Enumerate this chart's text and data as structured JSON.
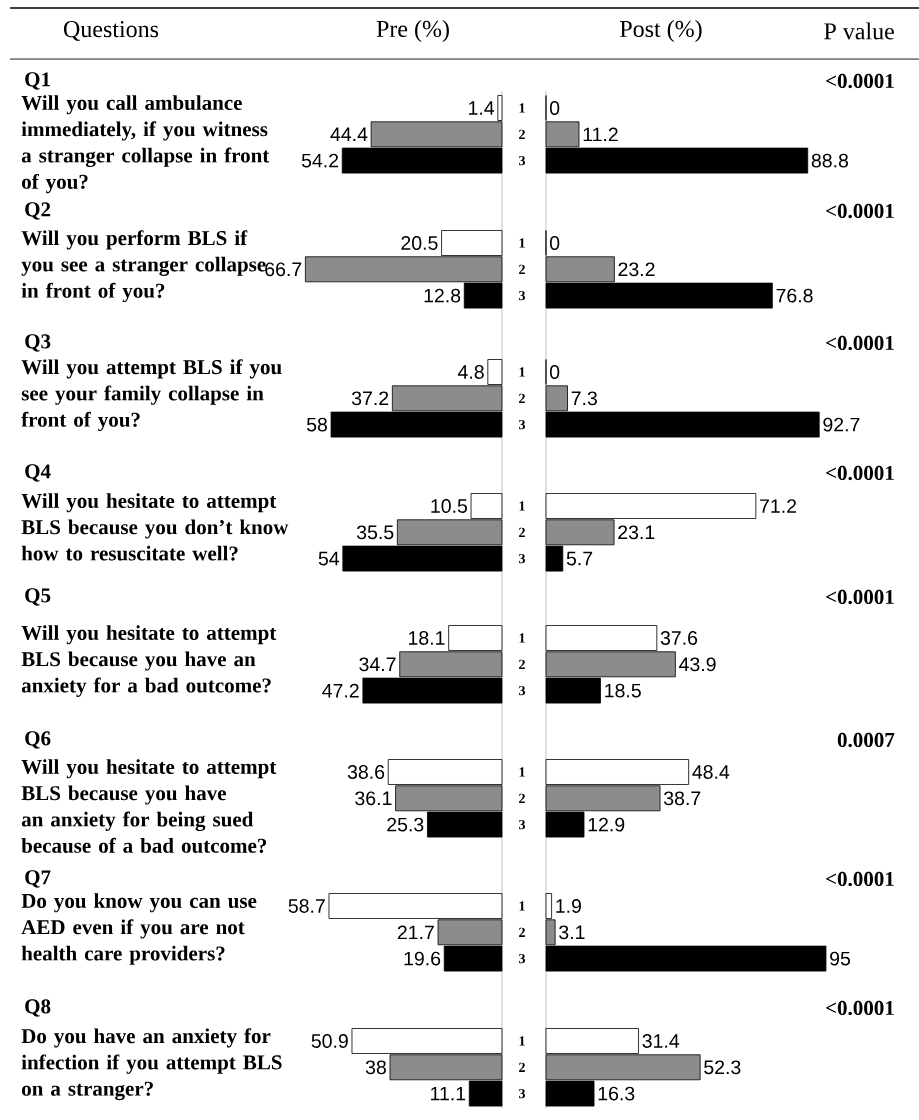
{
  "chart_data": [
    {
      "type": "other",
      "annotations": [
        "Questions",
        "Q1",
        "Will you call ambulance immediately, if you witness a stranger collapse in front of you?",
        "Q2",
        "Will you perform BLS if you see a stranger collapse in front of you?",
        "Q3",
        "Will you attempt BLS if you see your family collapse in front of you?",
        "Q4",
        "Will you hesitate to attempt BLS because you don’t know how to resuscitate well?",
        "Q5",
        "Will you hesitate to attempt BLS because you have an anxiety for a bad outcome?",
        "Q6",
        "Will you hesitate to attempt BLS because you have an anxiety for being sued because of a bad outcome?",
        "Q7",
        "Do you know you can use AED even if you are not health care providers?",
        "Q8",
        "Do you have an anxiety for infection if you attempt BLS on a stranger?"
      ]
    },
    {
      "type": "bar",
      "orientation": "horizontal",
      "title": "Pre (%)",
      "categories": [
        "1",
        "2",
        "3"
      ],
      "values": [
        1.4,
        44.4,
        54.2
      ],
      "colors": [
        "#ffffff",
        "#8c8c8c",
        "#000000"
      ],
      "data_labels": true,
      "tick_labels": "y"
    },
    {
      "type": "bar",
      "orientation": "horizontal",
      "categories": [
        "1",
        "2",
        "3"
      ],
      "values": [
        20.5,
        66.7,
        12.8
      ],
      "colors": [
        "#ffffff",
        "#8c8c8c",
        "#000000"
      ],
      "data_labels": true,
      "tick_labels": "y"
    },
    {
      "type": "bar",
      "orientation": "horizontal",
      "categories": [
        "1",
        "2",
        "3"
      ],
      "values": [
        4.8,
        37.2,
        58
      ],
      "colors": [
        "#ffffff",
        "#8c8c8c",
        "#000000"
      ],
      "data_labels": true,
      "tick_labels": "y"
    },
    {
      "type": "bar",
      "orientation": "horizontal",
      "categories": [
        "1",
        "2",
        "3"
      ],
      "values": [
        10.5,
        35.5,
        54
      ],
      "colors": [
        "#ffffff",
        "#8c8c8c",
        "#000000"
      ],
      "data_labels": true,
      "tick_labels": "y"
    },
    {
      "type": "bar",
      "orientation": "horizontal",
      "categories": [
        "1",
        "2",
        "3"
      ],
      "values": [
        18.1,
        34.7,
        47.2
      ],
      "colors": [
        "#ffffff",
        "#8c8c8c",
        "#000000"
      ],
      "data_labels": true,
      "tick_labels": "y"
    },
    {
      "type": "bar",
      "orientation": "horizontal",
      "categories": [
        "1",
        "2",
        "3"
      ],
      "values": [
        38.6,
        36.1,
        25.3
      ],
      "colors": [
        "#ffffff",
        "#8c8c8c",
        "#000000"
      ],
      "data_labels": true,
      "tick_labels": "y"
    },
    {
      "type": "bar",
      "orientation": "horizontal",
      "categories": [
        "1",
        "2",
        "3"
      ],
      "values": [
        58.7,
        21.7,
        19.6
      ],
      "colors": [
        "#ffffff",
        "#8c8c8c",
        "#000000"
      ],
      "data_labels": true,
      "tick_labels": "y"
    },
    {
      "type": "bar",
      "orientation": "horizontal",
      "categories": [
        "1",
        "2",
        "3"
      ],
      "values": [
        50.9,
        38,
        11.1
      ],
      "colors": [
        "#ffffff",
        "#8c8c8c",
        "#000000"
      ],
      "data_labels": true,
      "tick_labels": "y"
    },
    {
      "type": "bar",
      "orientation": "horizontal",
      "title": "Post (%)",
      "categories": [
        "1",
        "2",
        "3"
      ],
      "values": [
        0,
        11.2,
        88.8
      ],
      "colors": [
        "#ffffff",
        "#8c8c8c",
        "#000000"
      ],
      "data_labels": true,
      "tick_labels": false
    },
    {
      "type": "bar",
      "orientation": "horizontal",
      "categories": [
        "1",
        "2",
        "3"
      ],
      "values": [
        0,
        23.2,
        76.8
      ],
      "colors": [
        "#ffffff",
        "#8c8c8c",
        "#000000"
      ],
      "data_labels": true,
      "tick_labels": false
    },
    {
      "type": "bar",
      "orientation": "horizontal",
      "categories": [
        "1",
        "2",
        "3"
      ],
      "values": [
        0,
        7.3,
        92.7
      ],
      "colors": [
        "#ffffff",
        "#8c8c8c",
        "#000000"
      ],
      "data_labels": true,
      "tick_labels": false
    },
    {
      "type": "bar",
      "orientation": "horizontal",
      "categories": [
        "1",
        "2",
        "3"
      ],
      "values": [
        71.2,
        23.1,
        5.7
      ],
      "colors": [
        "#ffffff",
        "#8c8c8c",
        "#000000"
      ],
      "data_labels": true,
      "tick_labels": false
    },
    {
      "type": "bar",
      "orientation": "horizontal",
      "categories": [
        "1",
        "2",
        "3"
      ],
      "values": [
        37.6,
        43.9,
        18.5
      ],
      "colors": [
        "#ffffff",
        "#8c8c8c",
        "#000000"
      ],
      "data_labels": true,
      "tick_labels": false
    },
    {
      "type": "bar",
      "orientation": "horizontal",
      "categories": [
        "1",
        "2",
        "3"
      ],
      "values": [
        48.4,
        38.7,
        12.9
      ],
      "colors": [
        "#ffffff",
        "#8c8c8c",
        "#000000"
      ],
      "data_labels": true,
      "tick_labels": false
    },
    {
      "type": "bar",
      "orientation": "horizontal",
      "categories": [
        "1",
        "2",
        "3"
      ],
      "values": [
        1.9,
        3.1,
        95
      ],
      "colors": [
        "#ffffff",
        "#8c8c8c",
        "#000000"
      ],
      "data_labels": true,
      "tick_labels": false
    },
    {
      "type": "bar",
      "orientation": "horizontal",
      "categories": [
        "1",
        "2",
        "3"
      ],
      "values": [
        31.4,
        52.3,
        16.3
      ],
      "colors": [
        "#ffffff",
        "#8c8c8c",
        "#000000"
      ],
      "data_labels": true,
      "tick_labels": false
    },
    {
      "type": "other",
      "annotations": [
        "P value",
        "<0.0001",
        "<0.0001",
        "<0.0001",
        "<0.0001",
        "<0.0001",
        "0.0007",
        "<0.0001",
        "<0.0001"
      ]
    }
  ]
}
